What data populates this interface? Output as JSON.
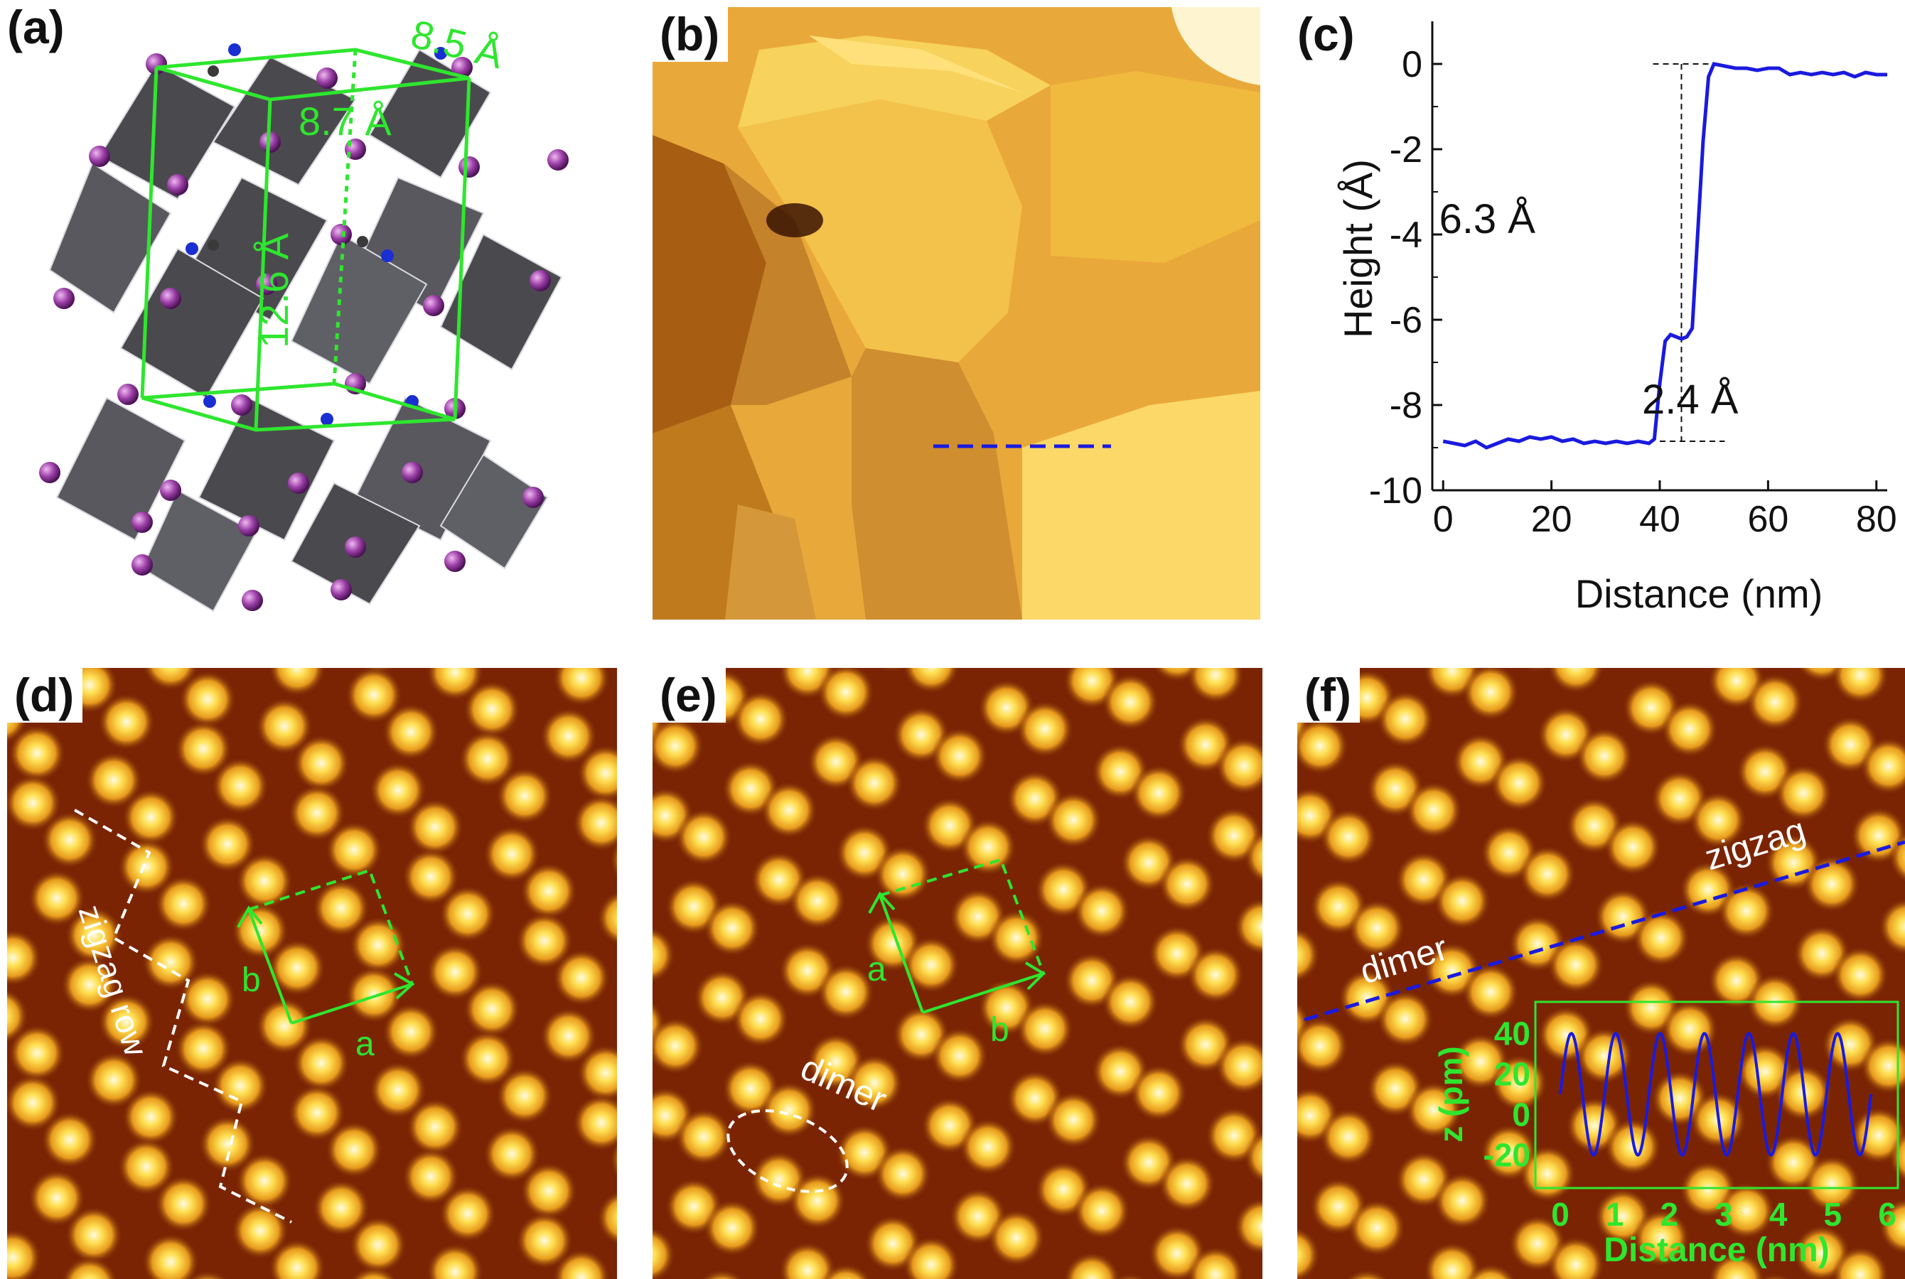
{
  "panels": {
    "a": {
      "label": "(a)",
      "lattice": {
        "len1": "8.5 Å",
        "len2": "8.7 Å",
        "len3": "12.6 Å"
      },
      "colors": {
        "cell": "#2ee62e",
        "iodide": "#9b3fa6",
        "octahedra": "#4a4a4e",
        "nitrogen": "#1a2fd1"
      }
    },
    "b": {
      "label": "(b)",
      "colors": {
        "terrace_light": "#ffd45a",
        "terrace_dark": "#a85e12",
        "line": "#1a1adf"
      }
    },
    "c": {
      "label": "(c)",
      "chart_data": {
        "type": "line",
        "xlabel": "Distance (nm)",
        "ylabel": "Height (Å)",
        "xlim": [
          -2,
          82
        ],
        "ylim": [
          -10,
          1
        ],
        "xticks": [
          0,
          20,
          40,
          60,
          80
        ],
        "yticks": [
          0,
          -2,
          -4,
          -6,
          -8,
          -10
        ],
        "series": [
          {
            "color": "#1a1adf",
            "x": [
              0,
              2,
              4,
              6,
              8,
              10,
              12,
              14,
              16,
              18,
              20,
              22,
              24,
              26,
              28,
              30,
              32,
              34,
              36,
              38,
              39,
              40,
              41,
              42,
              43,
              44,
              45,
              46,
              47,
              48,
              49,
              50,
              52,
              54,
              56,
              58,
              60,
              62,
              64,
              66,
              68,
              70,
              72,
              74,
              76,
              78,
              80,
              82
            ],
            "y": [
              -8.85,
              -8.9,
              -8.95,
              -8.85,
              -9.0,
              -8.9,
              -8.8,
              -8.85,
              -8.75,
              -8.8,
              -8.75,
              -8.85,
              -8.8,
              -8.9,
              -8.85,
              -8.9,
              -8.85,
              -8.9,
              -8.85,
              -8.9,
              -8.8,
              -7.5,
              -6.5,
              -6.35,
              -6.4,
              -6.45,
              -6.4,
              -6.2,
              -4.0,
              -1.8,
              -0.3,
              0.0,
              -0.05,
              -0.1,
              -0.1,
              -0.15,
              -0.1,
              -0.1,
              -0.25,
              -0.2,
              -0.25,
              -0.2,
              -0.25,
              -0.2,
              -0.3,
              -0.2,
              -0.25,
              -0.25
            ]
          }
        ],
        "annotations": [
          "6.3 Å",
          "2.4 Å"
        ]
      }
    },
    "d": {
      "label": "(d)",
      "text_zigzag_row": "zigzag row",
      "text_a": "a",
      "text_b": "b"
    },
    "e": {
      "label": "(e)",
      "text_dimer": "dimer",
      "text_a": "a",
      "text_b": "b"
    },
    "f": {
      "label": "(f)",
      "text_dimer": "dimer",
      "text_zigzag": "zigzag",
      "inset": {
        "xlabel": "Distance (nm)",
        "ylabel": "z (pm)",
        "xticks": [
          0,
          1,
          2,
          3,
          4,
          5,
          6
        ],
        "yticks": [
          40,
          20,
          0,
          -20
        ],
        "periods": 7,
        "amplitude": 40,
        "xmax": 5.7
      }
    }
  }
}
